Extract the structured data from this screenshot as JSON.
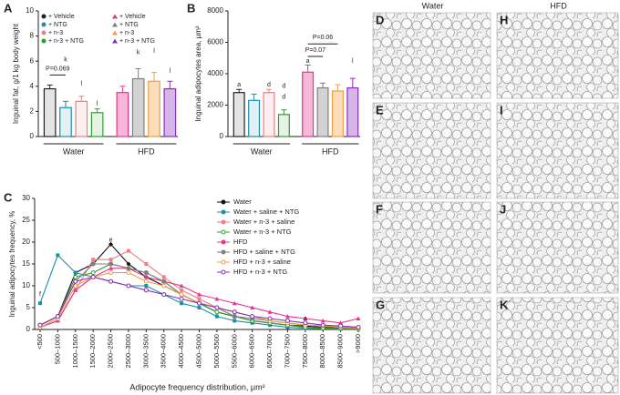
{
  "chart_data": [
    {
      "panel": "A",
      "type": "bar",
      "ylabel": "Inguinal fat, g/1 kg body weight",
      "ylim": [
        0,
        10
      ],
      "yticks": [
        0,
        2,
        4,
        6,
        8,
        10
      ],
      "groups": [
        "Water",
        "HFD"
      ],
      "categories": [
        null,
        null,
        null,
        null,
        null,
        null,
        null,
        null
      ],
      "values": [
        3.8,
        2.3,
        2.8,
        1.9,
        3.5,
        4.6,
        4.4,
        3.8
      ],
      "errors": [
        0.3,
        0.5,
        0.4,
        0.3,
        0.5,
        0.8,
        0.7,
        0.6
      ],
      "colors": [
        "#222222",
        "#1b8ea8",
        "#f07f7f",
        "#2ca02c",
        "#e8348c",
        "#7f7f7f",
        "#f0a040",
        "#8a2fb8"
      ],
      "legend": [
        "+ Vehicle",
        "+ NTG",
        "+ n-3",
        "+ n-3 + NTG",
        "+ Vehicle",
        "+ NTG",
        "+ n-3",
        "+ n-3 + NTG"
      ],
      "annotations": [
        "P=0.069",
        "k",
        "l",
        "l",
        "k",
        "l",
        "l"
      ]
    },
    {
      "panel": "B",
      "type": "bar",
      "ylabel": "Inguinal adipocytes area, μm²",
      "ylim": [
        0,
        8000
      ],
      "yticks": [
        0,
        2000,
        4000,
        6000,
        8000
      ],
      "groups": [
        "Water",
        "HFD"
      ],
      "categories": [
        null,
        null,
        null,
        null,
        null,
        null,
        null,
        null
      ],
      "values": [
        2800,
        2300,
        2800,
        1400,
        4100,
        3100,
        2900,
        3100
      ],
      "errors": [
        200,
        400,
        200,
        300,
        450,
        300,
        400,
        600
      ],
      "colors": [
        "#222222",
        "#1b8ea8",
        "#f07f7f",
        "#2ca02c",
        "#e8348c",
        "#7f7f7f",
        "#f0a040",
        "#8a2fb8"
      ],
      "annotations": [
        "a",
        "d",
        "d",
        "d",
        "a",
        "P=0.07",
        "P=0.06",
        "l"
      ]
    },
    {
      "panel": "C",
      "type": "line",
      "ylabel": "Inguinal adipocytes frequency, %",
      "xlabel": "Adipocyte frequency distribution, μm²",
      "ylim": [
        0,
        30
      ],
      "yticks": [
        0,
        5,
        10,
        15,
        20,
        25,
        30
      ],
      "categories": [
        "<500",
        "500–1000",
        "1000–1500",
        "1500–2000",
        "2000–2500",
        "2500–3000",
        "3000–3500",
        "3500–4000",
        "4000–4500",
        "4500–5000",
        "5000–5500",
        "5500–6000",
        "6000–6500",
        "6500–7000",
        "7000–7500",
        "7500–8000",
        "8000–8500",
        "8500–9000",
        ">9000"
      ],
      "series": [
        {
          "name": "Water",
          "color": "#111111",
          "marker": "diamond",
          "values": [
            1,
            3,
            13,
            15,
            19.5,
            15,
            12,
            10,
            8,
            6,
            4,
            3,
            2,
            1.5,
            1,
            0.8,
            0.5,
            0.3,
            0.2
          ]
        },
        {
          "name": "Water + saline + NTG",
          "color": "#1b8ea8",
          "marker": "square",
          "values": [
            6,
            17,
            13,
            12,
            11,
            10,
            10,
            8,
            6,
            5,
            3,
            2,
            1.5,
            1,
            0.5,
            0.3,
            0.2,
            0.1,
            0.1
          ]
        },
        {
          "name": "Water + n-3 + saline",
          "color": "#f07f7f",
          "marker": "square",
          "values": [
            0.5,
            2,
            9,
            16,
            16,
            18,
            15,
            12,
            9,
            7,
            5,
            3,
            2,
            1.5,
            1,
            0.5,
            0.3,
            0.2,
            0.1
          ]
        },
        {
          "name": "Water + n-3 + NTG",
          "color": "#2ca02c",
          "marker": "open",
          "values": [
            1,
            3,
            12,
            13,
            15,
            14,
            13,
            11,
            8,
            6,
            4,
            3,
            2,
            1.5,
            1,
            0.5,
            0.3,
            0.2,
            0.1
          ]
        },
        {
          "name": "HFD",
          "color": "#e8348c",
          "marker": "triangle",
          "values": [
            0.5,
            2,
            9,
            12,
            14,
            14,
            12,
            11,
            10,
            8,
            7,
            6,
            5,
            4,
            3,
            2.5,
            2,
            1.5,
            2.5
          ]
        },
        {
          "name": "HFD + saline + NTG",
          "color": "#7f7f7f",
          "marker": "circle",
          "values": [
            1,
            3,
            11,
            15,
            15,
            14,
            13,
            11,
            8,
            6,
            5,
            3,
            2.5,
            2,
            1.5,
            1,
            0.8,
            0.5,
            0.5
          ]
        },
        {
          "name": "HFD + n-3 + saline",
          "color": "#f0a040",
          "marker": "open",
          "values": [
            0.5,
            2.5,
            10,
            12,
            13,
            13,
            11,
            10,
            8,
            6,
            5,
            4,
            3,
            2,
            1.5,
            1,
            0.8,
            0.5,
            0.3
          ]
        },
        {
          "name": "HFD + n-3 + NTG",
          "color": "#8a2fb8",
          "marker": "open",
          "values": [
            1,
            3,
            11,
            12,
            11,
            10,
            9,
            8,
            7,
            6,
            5,
            4,
            3,
            2.5,
            2,
            1.5,
            1,
            0.8,
            0.5
          ]
        }
      ],
      "annotations": [
        "f",
        "e",
        "a"
      ]
    }
  ],
  "micrographs": {
    "columns": [
      "Water",
      "HFD"
    ],
    "panels": [
      "D",
      "E",
      "F",
      "G",
      "H",
      "I",
      "J",
      "K"
    ]
  }
}
